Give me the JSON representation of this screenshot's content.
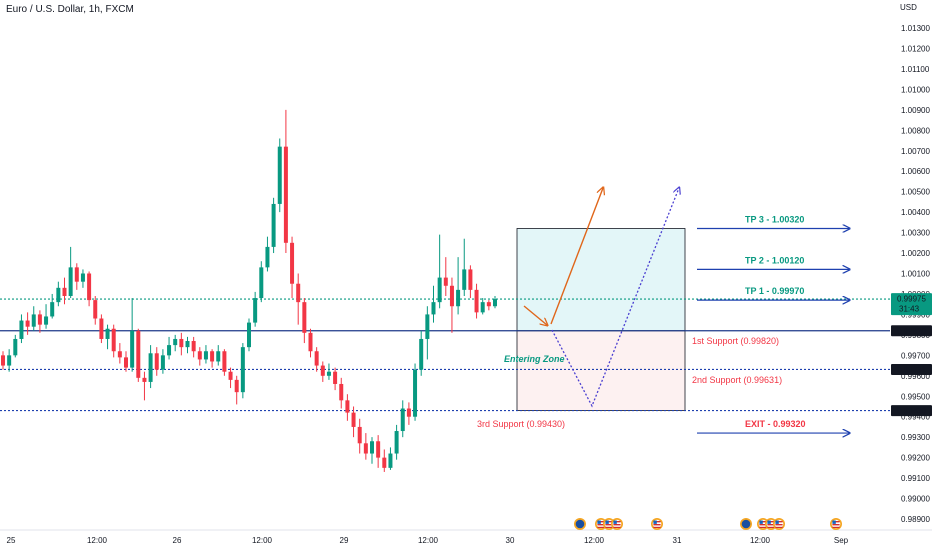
{
  "header": {
    "title": "Euro / U.S. Dollar, 1h, FXCM"
  },
  "chart_data": {
    "type": "candlestick",
    "title": "Euro / U.S. Dollar, 1h, FXCM",
    "currency_label": "USD",
    "ylim": [
      0.9885,
      1.0145
    ],
    "y_ticks": [
      "1.01300",
      "1.01200",
      "1.01100",
      "1.01000",
      "1.00900",
      "1.00800",
      "1.00700",
      "1.00600",
      "1.00500",
      "1.00400",
      "1.00300",
      "1.00200",
      "1.00100",
      "1.00000",
      "0.99900",
      "0.99800",
      "0.99700",
      "0.99600",
      "0.99500",
      "0.99400",
      "0.99300",
      "0.99200",
      "0.99100",
      "0.99000",
      "0.98900"
    ],
    "x_tick_labels": [
      "25",
      "12:00",
      "26",
      "12:00",
      "29",
      "12:00",
      "30",
      "12:00",
      "31",
      "12:00",
      "Sep"
    ],
    "price_labels": [
      {
        "name": "last-price-label",
        "value": 0.99975,
        "text": "0.99975",
        "subtext": "31:43",
        "bg": "#089981"
      },
      {
        "name": "support-1-price-label",
        "value": 0.9982,
        "text": "0.99820",
        "bg": "#131722"
      },
      {
        "name": "support-2-price-label",
        "value": 0.99631,
        "text": "0.99631",
        "bg": "#131722"
      },
      {
        "name": "support-3-price-label",
        "value": 0.9943,
        "text": "0.99430",
        "bg": "#131722"
      }
    ],
    "levels": [
      {
        "name": "support-1-line",
        "value": 0.9982,
        "style": "solid",
        "color": "#1e3a8a"
      },
      {
        "name": "support-2-line",
        "value": 0.99631,
        "style": "dotted",
        "color": "#1e40af"
      },
      {
        "name": "support-3-line",
        "value": 0.9943,
        "style": "dotted",
        "color": "#1e40af"
      },
      {
        "name": "last-price-line",
        "value": 0.99975,
        "style": "dotted",
        "color": "#089981"
      }
    ],
    "annotations": {
      "tp3": "TP 3 - 1.00320",
      "tp2": "TP 2 - 1.00120",
      "tp1": "TP 1 - 0.99970",
      "support1": "1st Support (0.99820)",
      "support2": "2nd Support (0.99631)",
      "support3": "3rd Support (0.99430)",
      "exit": "EXIT - 0.99320",
      "entering_zone": "Entering Zone"
    },
    "target_values": {
      "tp3": 1.0032,
      "tp2": 1.0012,
      "tp1": 0.9997,
      "exit": 0.9932
    },
    "candles": [
      [
        0.997,
        0.9965,
        0.9972,
        0.9963
      ],
      [
        0.9965,
        0.997,
        0.9973,
        0.9962
      ],
      [
        0.997,
        0.9978,
        0.998,
        0.9969
      ],
      [
        0.9978,
        0.9987,
        0.999,
        0.9976
      ],
      [
        0.9987,
        0.9984,
        0.9991,
        0.998
      ],
      [
        0.9984,
        0.999,
        0.9994,
        0.9982
      ],
      [
        0.999,
        0.9985,
        0.9992,
        0.9981
      ],
      [
        0.9985,
        0.9989,
        0.9995,
        0.9983
      ],
      [
        0.9989,
        0.9996,
        1.0,
        0.9988
      ],
      [
        0.9996,
        1.0003,
        1.0006,
        0.9994
      ],
      [
        1.0003,
        0.9999,
        1.0008,
        0.9995
      ],
      [
        0.9999,
        1.0013,
        1.0023,
        0.9998
      ],
      [
        1.0013,
        1.0006,
        1.0015,
        1.0002
      ],
      [
        1.0006,
        1.001,
        1.0012,
        1.0003
      ],
      [
        1.001,
        0.9997,
        1.0011,
        0.9994
      ],
      [
        0.9997,
        0.9988,
        0.9999,
        0.9985
      ],
      [
        0.9988,
        0.9978,
        0.999,
        0.9976
      ],
      [
        0.9978,
        0.9983,
        0.9985,
        0.9973
      ],
      [
        0.9983,
        0.9972,
        0.9985,
        0.9969
      ],
      [
        0.9972,
        0.9969,
        0.9976,
        0.9966
      ],
      [
        0.9969,
        0.9964,
        0.9972,
        0.9962
      ],
      [
        0.9964,
        0.9982,
        0.9998,
        0.9962
      ],
      [
        0.9982,
        0.9959,
        0.9983,
        0.9957
      ],
      [
        0.9959,
        0.9957,
        0.9962,
        0.9948
      ],
      [
        0.9957,
        0.9971,
        0.9975,
        0.9954
      ],
      [
        0.9971,
        0.9963,
        0.9974,
        0.996
      ],
      [
        0.9963,
        0.997,
        0.9973,
        0.9961
      ],
      [
        0.997,
        0.9975,
        0.9979,
        0.9968
      ],
      [
        0.9975,
        0.9978,
        0.998,
        0.9972
      ],
      [
        0.9978,
        0.9974,
        0.9981,
        0.997
      ],
      [
        0.9974,
        0.9977,
        0.9979,
        0.9971
      ],
      [
        0.9977,
        0.9972,
        0.9979,
        0.9969
      ],
      [
        0.9972,
        0.9968,
        0.9974,
        0.9965
      ],
      [
        0.9968,
        0.9972,
        0.9975,
        0.9966
      ],
      [
        0.9972,
        0.9967,
        0.9973,
        0.9964
      ],
      [
        0.9967,
        0.9972,
        0.9975,
        0.9965
      ],
      [
        0.9972,
        0.9962,
        0.9973,
        0.996
      ],
      [
        0.9962,
        0.9958,
        0.9964,
        0.9954
      ],
      [
        0.9958,
        0.9952,
        0.996,
        0.9946
      ],
      [
        0.9952,
        0.9974,
        0.9976,
        0.9949
      ],
      [
        0.9974,
        0.9986,
        0.9988,
        0.9972
      ],
      [
        0.9986,
        0.9998,
        1.0001,
        0.9984
      ],
      [
        0.9998,
        1.0013,
        1.0016,
        0.9996
      ],
      [
        1.0013,
        1.0023,
        1.0028,
        1.0011
      ],
      [
        1.0023,
        1.0044,
        1.0047,
        1.002
      ],
      [
        1.0044,
        1.0072,
        1.0076,
        1.004
      ],
      [
        1.0072,
        1.0025,
        1.009,
        1.002
      ],
      [
        1.0025,
        1.0005,
        1.0028,
        0.9998
      ],
      [
        1.0005,
        0.9996,
        1.001,
        0.9985
      ],
      [
        0.9996,
        0.9981,
        0.9998,
        0.9976
      ],
      [
        0.9981,
        0.9972,
        0.9983,
        0.9969
      ],
      [
        0.9972,
        0.9965,
        0.9974,
        0.9962
      ],
      [
        0.9965,
        0.996,
        0.9967,
        0.9957
      ],
      [
        0.996,
        0.9962,
        0.9966,
        0.9958
      ],
      [
        0.9962,
        0.9956,
        0.9964,
        0.9953
      ],
      [
        0.9956,
        0.9948,
        0.9959,
        0.9944
      ],
      [
        0.9948,
        0.9942,
        0.9951,
        0.9938
      ],
      [
        0.9942,
        0.9935,
        0.9945,
        0.993
      ],
      [
        0.9935,
        0.9927,
        0.9939,
        0.9922
      ],
      [
        0.9927,
        0.9922,
        0.9932,
        0.9919
      ],
      [
        0.9922,
        0.9928,
        0.993,
        0.9917
      ],
      [
        0.9928,
        0.992,
        0.9931,
        0.9915
      ],
      [
        0.992,
        0.9915,
        0.9924,
        0.9913
      ],
      [
        0.9915,
        0.9922,
        0.9925,
        0.9914
      ],
      [
        0.9922,
        0.9933,
        0.9936,
        0.9919
      ],
      [
        0.9933,
        0.9944,
        0.9948,
        0.993
      ],
      [
        0.9944,
        0.994,
        0.9947,
        0.9936
      ],
      [
        0.994,
        0.9963,
        0.9966,
        0.9938
      ],
      [
        0.9963,
        0.9978,
        0.9982,
        0.996
      ],
      [
        0.9978,
        0.999,
        0.9994,
        0.9968
      ],
      [
        0.999,
        0.9996,
        1.0004,
        0.9986
      ],
      [
        0.9996,
        1.0008,
        1.0029,
        0.9993
      ],
      [
        1.0008,
        1.0004,
        1.0018,
        0.9999
      ],
      [
        1.0004,
        0.9994,
        1.0008,
        0.9981
      ],
      [
        0.9994,
        1.0002,
        1.0018,
        0.999
      ],
      [
        1.0002,
        1.0012,
        1.0027,
        0.9999
      ],
      [
        1.0012,
        1.0002,
        1.0014,
        0.9998
      ],
      [
        1.0002,
        0.9991,
        1.0005,
        0.9988
      ],
      [
        0.9991,
        0.9996,
        0.9998,
        0.999
      ],
      [
        0.9996,
        0.9994,
        0.9997,
        0.9992
      ],
      [
        0.9994,
        0.99975,
        0.9999,
        0.9993
      ]
    ]
  }
}
